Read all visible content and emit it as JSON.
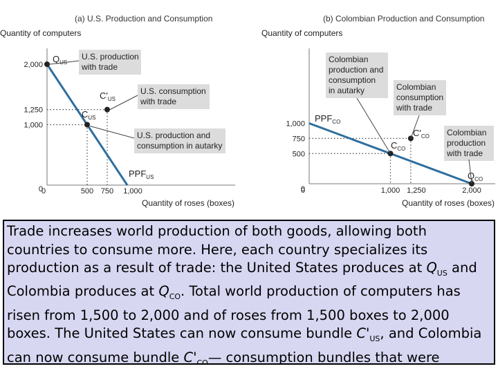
{
  "chart_data": [
    {
      "type": "line",
      "panel_title": "(a) U.S. Production and Consumption",
      "ylabel": "Quantity of computers",
      "xlabel": "Quantity of roses (boxes)",
      "xlim": [
        0,
        1200
      ],
      "ylim": [
        0,
        2200
      ],
      "x_ticks": [
        "0",
        "500",
        "750",
        "1,000"
      ],
      "y_ticks": [
        "0",
        "1,000",
        "1,250",
        "2,000"
      ],
      "series": [
        {
          "name": "PPF_US",
          "x": [
            0,
            1000
          ],
          "y": [
            2000,
            0
          ]
        }
      ],
      "points": [
        {
          "name": "Q_US",
          "x": 0,
          "y": 2000
        },
        {
          "name": "C_US",
          "x": 500,
          "y": 1000
        },
        {
          "name": "C'_US",
          "x": 750,
          "y": 1250
        }
      ],
      "labels": {
        "q": "Q",
        "q_sub": "US",
        "c": "C",
        "c_sub": "US",
        "cp": "C'",
        "cp_sub": "US",
        "ppf": "PPF",
        "ppf_sub": "US"
      },
      "annotations": {
        "production_with_trade": [
          "U.S. production",
          "with trade"
        ],
        "consumption_with_trade": [
          "U.S. consumption",
          "with trade"
        ],
        "autarky": [
          "U.S. production and",
          "consumption in autarky"
        ]
      }
    },
    {
      "type": "line",
      "panel_title": "(b) Colombian Production and Consumption",
      "ylabel": "Quantity of computers",
      "xlabel": "Quantity of roses (boxes)",
      "xlim": [
        0,
        2300
      ],
      "ylim": [
        0,
        1300
      ],
      "x_ticks": [
        "0",
        "1,000",
        "1,250",
        "2,000"
      ],
      "y_ticks": [
        "0",
        "500",
        "750",
        "1,000"
      ],
      "series": [
        {
          "name": "PPF_CO",
          "x": [
            0,
            2000
          ],
          "y": [
            1000,
            0
          ]
        }
      ],
      "points": [
        {
          "name": "Q_CO",
          "x": 2000,
          "y": 0
        },
        {
          "name": "C_CO",
          "x": 1000,
          "y": 500
        },
        {
          "name": "C'_CO",
          "x": 1250,
          "y": 750
        }
      ],
      "labels": {
        "q": "Q",
        "q_sub": "CO",
        "c": "C",
        "c_sub": "CO",
        "cp": "C'",
        "cp_sub": "CO",
        "ppf": "PPF",
        "ppf_sub": "CO"
      },
      "annotations": {
        "autarky": [
          "Colombian",
          "production and",
          "consumption",
          "in autarky"
        ],
        "consumption_with_trade": [
          "Colombian",
          "consumption",
          "with trade"
        ],
        "production_with_trade": [
          "Colombian",
          "production",
          "with trade"
        ]
      }
    }
  ],
  "caption": {
    "t1": "Trade increases world production of both goods, allowing both countries to consume more. Here, each country specializes its production as a result of trade: the United States produces at ",
    "q": "Q",
    "us": "US",
    "t2": " and Colombia produces at ",
    "co": "CO",
    "t3": ". Total world production of computers has risen from 1,500 to 2,000 and of roses from 1,500 boxes to 2,000 boxes. The United States can now consume bundle ",
    "cp": "C'",
    "t4": ", and Colombia can now consume bundle ",
    "t5": "— consumption bundles that were unattainable without trade."
  },
  "colors": {
    "ppf": "#2e6e9e",
    "callout": "#dcdcdc",
    "caption_bg": "#d7d7f2"
  }
}
